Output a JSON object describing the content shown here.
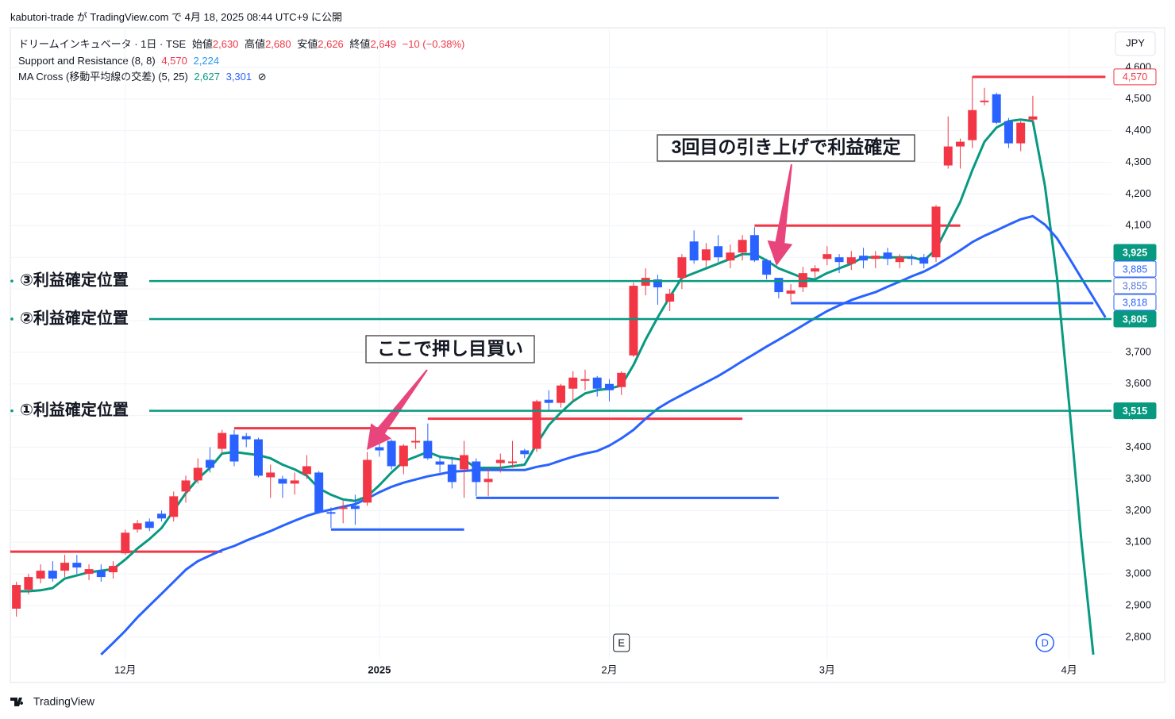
{
  "header": {
    "published": "kabutori-trade が TradingView.com で 4月 18, 2025 08:44 UTC+9 に公開",
    "symbol": "ドリームインキュベータ · 1日 · TSE",
    "ohlc": [
      {
        "label": "始値",
        "value": "2,630"
      },
      {
        "label": "高値",
        "value": "2,680"
      },
      {
        "label": "安値",
        "value": "2,626"
      },
      {
        "label": "終値",
        "value": "2,649"
      }
    ],
    "change": "−10 (−0.38%)",
    "indicators": [
      {
        "name": "Support and Resistance (8, 8)",
        "values": [
          "4,570",
          "2,224"
        ]
      },
      {
        "name": "MA Cross (移動平均線の交差) (5, 25)",
        "values": [
          "2,627",
          "3,301"
        ],
        "icon": "⊘"
      }
    ],
    "currency": "JPY"
  },
  "footer": {
    "brand": "TradingView"
  },
  "chart_data": {
    "type": "candlestick",
    "categories": [
      null,
      null,
      null,
      null,
      null,
      null,
      null,
      null,
      null,
      "12月",
      null,
      null,
      null,
      null,
      null,
      null,
      null,
      null,
      null,
      null,
      null,
      null,
      null,
      null,
      null,
      null,
      null,
      null,
      null,
      null,
      "2025",
      null,
      null,
      null,
      null,
      null,
      null,
      null,
      null,
      null,
      null,
      null,
      null,
      null,
      null,
      null,
      null,
      null,
      null,
      "2月",
      null,
      null,
      null,
      null,
      null,
      null,
      null,
      null,
      null,
      null,
      null,
      null,
      null,
      null,
      null,
      null,
      null,
      "3月",
      null,
      null,
      null,
      null,
      null,
      null,
      null,
      null,
      null,
      null,
      null,
      null,
      null,
      null,
      null,
      null,
      null,
      null,
      null,
      "4月",
      null,
      null,
      null
    ],
    "open": [
      2890,
      2950,
      2985,
      3010,
      3010,
      3035,
      3000,
      3010,
      3005,
      3065,
      3140,
      3165,
      3190,
      3180,
      3260,
      3295,
      3360,
      3395,
      3440,
      3435,
      3425,
      3305,
      3300,
      3285,
      3315,
      3320,
      3195,
      3205,
      3215,
      3225,
      3400,
      3420,
      3340,
      3415,
      3420,
      3355,
      3345,
      3330,
      3355,
      3290,
      3350,
      3350,
      3390,
      3395,
      3550,
      3540,
      3585,
      3610,
      3620,
      3600,
      3590,
      3690,
      3910,
      3930,
      3860,
      3935,
      4050,
      3990,
      4035,
      3990,
      4015,
      4070,
      3990,
      3935,
      3885,
      3905,
      3955,
      3995,
      4000,
      3980,
      4005,
      3995,
      4015,
      3985,
      4000,
      4000,
      4000,
      4290,
      4350,
      4370,
      4490,
      4515,
      4430,
      4360,
      4435,
      null,
      null,
      null,
      null,
      null,
      null
    ],
    "high": [
      2975,
      3000,
      3030,
      3040,
      3060,
      3060,
      3030,
      3030,
      3040,
      3140,
      3170,
      3175,
      3200,
      3260,
      3310,
      3365,
      3400,
      3455,
      3455,
      3445,
      3430,
      3345,
      3310,
      3320,
      3375,
      3325,
      3210,
      3230,
      3250,
      3385,
      3410,
      3425,
      3410,
      3460,
      3475,
      3370,
      3370,
      3420,
      3365,
      3335,
      3380,
      3420,
      3395,
      3550,
      3580,
      3600,
      3640,
      3645,
      3625,
      3615,
      3640,
      3920,
      3965,
      3945,
      3900,
      4010,
      4085,
      4045,
      4070,
      4040,
      4070,
      4095,
      3995,
      3935,
      3915,
      3970,
      3975,
      4035,
      4010,
      4020,
      4030,
      4020,
      4030,
      4010,
      4010,
      4010,
      4165,
      4445,
      4375,
      4570,
      4535,
      4520,
      4440,
      4430,
      4510,
      null,
      null,
      null,
      null,
      null,
      null
    ],
    "low": [
      2865,
      2935,
      2970,
      2975,
      2990,
      3000,
      2980,
      2975,
      2985,
      3060,
      3130,
      3135,
      3165,
      3165,
      3225,
      3285,
      3320,
      3380,
      3340,
      3400,
      3305,
      3240,
      3240,
      3250,
      3300,
      3190,
      3145,
      3160,
      3155,
      3215,
      3370,
      3330,
      3315,
      3395,
      3360,
      3320,
      3270,
      3240,
      3245,
      3245,
      3320,
      3335,
      3365,
      3385,
      3515,
      3525,
      3545,
      3580,
      3560,
      3545,
      3565,
      3685,
      3880,
      3850,
      3830,
      3900,
      3980,
      3970,
      3985,
      3965,
      3990,
      3985,
      3930,
      3870,
      3860,
      3890,
      3935,
      3975,
      3950,
      3960,
      3965,
      3965,
      3975,
      3965,
      3975,
      3965,
      3985,
      4280,
      4280,
      4345,
      4480,
      4420,
      4345,
      4335,
      4425,
      null,
      null,
      null,
      null,
      null,
      null
    ],
    "close": [
      2965,
      2990,
      3010,
      2985,
      3035,
      3020,
      3015,
      2990,
      3025,
      3130,
      3160,
      3145,
      3175,
      3245,
      3295,
      3335,
      3335,
      3445,
      3355,
      3425,
      3310,
      3320,
      3285,
      3295,
      3340,
      3195,
      3190,
      3210,
      3205,
      3360,
      3390,
      3340,
      3405,
      3420,
      3365,
      3345,
      3290,
      3375,
      3290,
      3300,
      3360,
      3355,
      3378,
      3545,
      3540,
      3595,
      3620,
      3615,
      3585,
      3580,
      3635,
      3910,
      3935,
      3905,
      3885,
      4000,
      3990,
      4025,
      4000,
      4015,
      4055,
      3990,
      3945,
      3890,
      3895,
      3950,
      3965,
      4010,
      3985,
      4000,
      3990,
      4005,
      3995,
      4000,
      3995,
      3980,
      4160,
      4350,
      4365,
      4465,
      4495,
      4425,
      4360,
      4425,
      4445,
      null,
      null,
      null,
      null,
      null,
      null
    ],
    "up_color": "#f23645",
    "down_color": "#2962ff",
    "ma_lines": [
      {
        "color": "#089981",
        "values": [
          2945,
          2945,
          2948,
          2955,
          2985,
          2995,
          3005,
          3010,
          3015,
          3045,
          3080,
          3110,
          3145,
          3200,
          3255,
          3300,
          3335,
          3380,
          3385,
          3380,
          3375,
          3365,
          3345,
          3330,
          3310,
          3270,
          3250,
          3235,
          3230,
          3245,
          3280,
          3320,
          3355,
          3370,
          3385,
          3370,
          3365,
          3360,
          3335,
          3335,
          3335,
          3340,
          3345,
          3410,
          3470,
          3510,
          3545,
          3570,
          3580,
          3585,
          3595,
          3660,
          3740,
          3810,
          3875,
          3935,
          3950,
          3965,
          3980,
          3995,
          4010,
          4010,
          3990,
          3965,
          3950,
          3935,
          3930,
          3950,
          3965,
          3980,
          4000,
          4000,
          4000,
          4000,
          4000,
          3990,
          4025,
          4100,
          4175,
          4275,
          4365,
          4410,
          4430,
          4435,
          4430,
          4225,
          3935,
          3535,
          3110,
          2745,
          null
        ]
      },
      {
        "color": "#2962ff",
        "values": [
          null,
          null,
          null,
          null,
          null,
          null,
          null,
          2745,
          2782,
          2820,
          2862,
          2900,
          2937,
          2975,
          3013,
          3040,
          3058,
          3075,
          3088,
          3105,
          3120,
          3135,
          3152,
          3168,
          3183,
          3195,
          3203,
          3212,
          3220,
          3238,
          3258,
          3275,
          3288,
          3298,
          3308,
          3315,
          3323,
          3325,
          3328,
          3328,
          3328,
          3328,
          3328,
          3338,
          3345,
          3358,
          3370,
          3380,
          3388,
          3405,
          3428,
          3455,
          3490,
          3522,
          3545,
          3565,
          3585,
          3605,
          3625,
          3648,
          3672,
          3695,
          3718,
          3740,
          3762,
          3785,
          3808,
          3830,
          3848,
          3865,
          3878,
          3890,
          3907,
          3923,
          3940,
          3955,
          3975,
          3998,
          4022,
          4048,
          4068,
          4085,
          4103,
          4120,
          4130,
          4103,
          4060,
          3998,
          3935,
          3873,
          3810
        ]
      }
    ],
    "sr_segments": [
      {
        "from": 0,
        "to": 17,
        "value": 3070,
        "color": "#f23645"
      },
      {
        "from": 18,
        "to": 33,
        "value": 3460,
        "color": "#f23645"
      },
      {
        "from": 34,
        "to": 60,
        "value": 3490,
        "color": "#f23645"
      },
      {
        "from": 61,
        "to": 78,
        "value": 4100,
        "color": "#f23645"
      },
      {
        "from": 79,
        "to": 90,
        "value": 4570,
        "color": "#f23645"
      },
      {
        "from": 26,
        "to": 37,
        "value": 3140,
        "color": "#2962ff"
      },
      {
        "from": 38,
        "to": 63,
        "value": 3240,
        "color": "#2962ff"
      },
      {
        "from": 64,
        "to": 89,
        "value": 3855,
        "color": "#2962ff"
      }
    ],
    "levels": [
      {
        "label": "③利益確定位置",
        "value": 3925,
        "color": "#089981"
      },
      {
        "label": "②利益確定位置",
        "value": 3805,
        "color": "#089981"
      },
      {
        "label": "①利益確定位置",
        "value": 3515,
        "color": "#089981"
      }
    ],
    "price_labels": [
      {
        "value": 4570,
        "label": "4,570",
        "color": "#f23645",
        "filled": false
      },
      {
        "value": 3925,
        "label": "3,925",
        "color": "#089981",
        "filled": true
      },
      {
        "value": 3885,
        "label": "3,885",
        "color": "#2962ff",
        "filled": false
      },
      {
        "value": 3855,
        "label": "3,855",
        "color": "#5b7bd5",
        "filled": false
      },
      {
        "value": 3818,
        "label": "3,818",
        "color": "#2962ff",
        "filled": false
      },
      {
        "value": 3805,
        "label": "3,805",
        "color": "#089981",
        "filled": true
      },
      {
        "value": 3515,
        "label": "3,515",
        "color": "#089981",
        "filled": true
      }
    ],
    "events": [
      {
        "index": 50,
        "label": "E"
      },
      {
        "index": 85,
        "label": "D"
      }
    ],
    "annotations": [
      {
        "text": "3回目の引き上げで利益確定"
      },
      {
        "text": "ここで押し目買い"
      }
    ],
    "ylim": [
      2732,
      4725
    ],
    "yticks": [
      {
        "value": 2800,
        "label": "2,800"
      },
      {
        "value": 2900,
        "label": "2,900"
      },
      {
        "value": 3000,
        "label": "3,000"
      },
      {
        "value": 3100,
        "label": "3,100"
      },
      {
        "value": 3200,
        "label": "3,200"
      },
      {
        "value": 3300,
        "label": "3,300"
      },
      {
        "value": 3400,
        "label": "3,400"
      },
      {
        "value": 3500,
        "label": "3,500"
      },
      {
        "value": 3600,
        "label": "3,600"
      },
      {
        "value": 3700,
        "label": "3,700"
      },
      {
        "value": 3800,
        "label": "3,800"
      },
      {
        "value": 3900,
        "label": "3,900"
      },
      {
        "value": 4000,
        "label": "4,000"
      },
      {
        "value": 4100,
        "label": "4,100"
      },
      {
        "value": 4200,
        "label": "4,200"
      },
      {
        "value": 4300,
        "label": "4,300"
      },
      {
        "value": 4400,
        "label": "4,400"
      },
      {
        "value": 4500,
        "label": "4,500"
      },
      {
        "value": 4600,
        "label": "4,600"
      }
    ],
    "grid": true
  }
}
